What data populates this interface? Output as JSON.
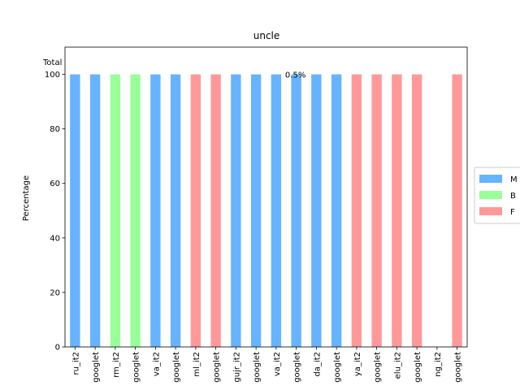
{
  "colors": {
    "M": "#66b3ff",
    "B": "#99ff99",
    "F": "#ff9999"
  },
  "chart_data": {
    "type": "bar",
    "title": "uncle",
    "ylabel": "Percentage",
    "xlabel": "",
    "ylim": [
      0,
      110
    ],
    "yticks": [
      0,
      20,
      40,
      60,
      80,
      100
    ],
    "corner_text": "Total",
    "annotation": {
      "text": "0.5%",
      "category_index": 11,
      "y": 100
    },
    "categories": [
      "ru_it2",
      "googlet",
      "rm_it2",
      "googlet",
      "va_it2",
      "googlet",
      "ml_it2",
      "googlet",
      "gujr_it2",
      "googlet",
      "va_it2",
      "googlet",
      "da_it2",
      "googlet",
      "ya_it2",
      "googlet",
      "elu_it2",
      "googlet",
      "ng_it2",
      "googlet"
    ],
    "series": [
      {
        "name": "M",
        "values": [
          100,
          100,
          0,
          0,
          100,
          100,
          0,
          0,
          100,
          100,
          100,
          100,
          100,
          100,
          0,
          0,
          0,
          0,
          0,
          0
        ]
      },
      {
        "name": "B",
        "values": [
          0,
          0,
          100,
          100,
          0,
          0,
          0,
          0,
          0,
          0,
          0,
          0,
          0,
          0,
          0,
          0,
          0,
          0,
          0,
          0
        ]
      },
      {
        "name": "F",
        "values": [
          0,
          0,
          0,
          0,
          0,
          0,
          100,
          100,
          0,
          0,
          0,
          0,
          0,
          0,
          100,
          100,
          100,
          100,
          0,
          100
        ]
      }
    ],
    "legend": {
      "position": "right",
      "entries": [
        "M",
        "B",
        "F"
      ]
    },
    "grid": false
  }
}
